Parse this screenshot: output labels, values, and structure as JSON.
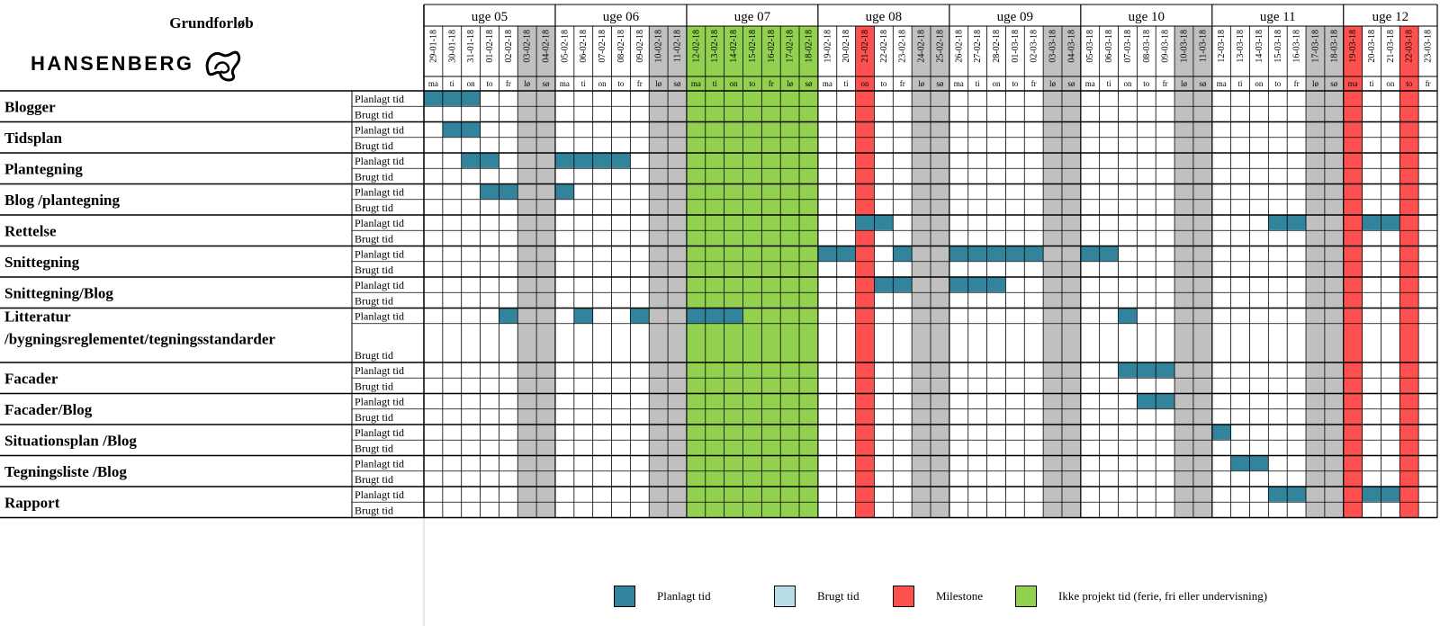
{
  "header": {
    "title": "Grundforløb",
    "brand": "HANSENBERG"
  },
  "colors": {
    "planned": "#31849b",
    "used": "#b7dde8",
    "milestone": "#ff5050",
    "nonproject": "#92d050",
    "weekend": "#c0c0c0",
    "grid": "#000000"
  },
  "weeks": [
    {
      "label": "uge 05",
      "start": 0,
      "span": 7
    },
    {
      "label": "uge 06",
      "start": 7,
      "span": 7
    },
    {
      "label": "uge 07",
      "start": 14,
      "span": 7
    },
    {
      "label": "uge 08",
      "start": 21,
      "span": 7
    },
    {
      "label": "uge 09",
      "start": 28,
      "span": 7
    },
    {
      "label": "uge 10",
      "start": 35,
      "span": 7
    },
    {
      "label": "uge 11",
      "start": 42,
      "span": 7
    },
    {
      "label": "uge 12",
      "start": 49,
      "span": 5
    }
  ],
  "days": [
    {
      "date": "29-01-18",
      "dow": "ma",
      "type": "work"
    },
    {
      "date": "30-01-18",
      "dow": "ti",
      "type": "work"
    },
    {
      "date": "31-01-18",
      "dow": "on",
      "type": "work"
    },
    {
      "date": "01-02-18",
      "dow": "to",
      "type": "work"
    },
    {
      "date": "02-02-18",
      "dow": "fr",
      "type": "work"
    },
    {
      "date": "03-02-18",
      "dow": "lø",
      "type": "weekend"
    },
    {
      "date": "04-02-18",
      "dow": "sø",
      "type": "weekend"
    },
    {
      "date": "05-02-18",
      "dow": "ma",
      "type": "work"
    },
    {
      "date": "06-02-18",
      "dow": "ti",
      "type": "work"
    },
    {
      "date": "07-02-18",
      "dow": "on",
      "type": "work"
    },
    {
      "date": "08-02-18",
      "dow": "to",
      "type": "work"
    },
    {
      "date": "09-02-18",
      "dow": "fr",
      "type": "work"
    },
    {
      "date": "10-02-18",
      "dow": "lø",
      "type": "weekend"
    },
    {
      "date": "11-02-18",
      "dow": "sø",
      "type": "weekend"
    },
    {
      "date": "12-02-18",
      "dow": "ma",
      "type": "nonproject"
    },
    {
      "date": "13-02-18",
      "dow": "ti",
      "type": "nonproject"
    },
    {
      "date": "14-02-18",
      "dow": "on",
      "type": "nonproject"
    },
    {
      "date": "15-02-18",
      "dow": "to",
      "type": "nonproject"
    },
    {
      "date": "16-02-18",
      "dow": "fr",
      "type": "nonproject"
    },
    {
      "date": "17-02-18",
      "dow": "lø",
      "type": "nonproject"
    },
    {
      "date": "18-02-18",
      "dow": "sø",
      "type": "nonproject"
    },
    {
      "date": "19-02-18",
      "dow": "ma",
      "type": "work"
    },
    {
      "date": "20-02-18",
      "dow": "ti",
      "type": "work"
    },
    {
      "date": "21-02-18",
      "dow": "on",
      "type": "milestone"
    },
    {
      "date": "22-02-18",
      "dow": "to",
      "type": "work"
    },
    {
      "date": "23-02-18",
      "dow": "fr",
      "type": "work"
    },
    {
      "date": "24-02-18",
      "dow": "lø",
      "type": "weekend"
    },
    {
      "date": "25-02-18",
      "dow": "sø",
      "type": "weekend"
    },
    {
      "date": "26-02-18",
      "dow": "ma",
      "type": "work"
    },
    {
      "date": "27-02-18",
      "dow": "ti",
      "type": "work"
    },
    {
      "date": "28-02-18",
      "dow": "on",
      "type": "work"
    },
    {
      "date": "01-03-18",
      "dow": "to",
      "type": "work"
    },
    {
      "date": "02-03-18",
      "dow": "fr",
      "type": "work"
    },
    {
      "date": "03-03-18",
      "dow": "lø",
      "type": "weekend"
    },
    {
      "date": "04-03-18",
      "dow": "sø",
      "type": "weekend"
    },
    {
      "date": "05-03-18",
      "dow": "ma",
      "type": "work"
    },
    {
      "date": "06-03-18",
      "dow": "ti",
      "type": "work"
    },
    {
      "date": "07-03-18",
      "dow": "on",
      "type": "work"
    },
    {
      "date": "08-03-18",
      "dow": "to",
      "type": "work"
    },
    {
      "date": "09-03-18",
      "dow": "fr",
      "type": "work"
    },
    {
      "date": "10-03-18",
      "dow": "lø",
      "type": "weekend"
    },
    {
      "date": "11-03-18",
      "dow": "sø",
      "type": "weekend"
    },
    {
      "date": "12-03-18",
      "dow": "ma",
      "type": "work"
    },
    {
      "date": "13-03-18",
      "dow": "ti",
      "type": "work"
    },
    {
      "date": "14-03-18",
      "dow": "on",
      "type": "work"
    },
    {
      "date": "15-03-18",
      "dow": "to",
      "type": "work"
    },
    {
      "date": "16-03-18",
      "dow": "fr",
      "type": "work"
    },
    {
      "date": "17-03-18",
      "dow": "lø",
      "type": "weekend"
    },
    {
      "date": "18-03-18",
      "dow": "sø",
      "type": "weekend"
    },
    {
      "date": "19-03-18",
      "dow": "ma",
      "type": "milestone"
    },
    {
      "date": "20-03-18",
      "dow": "ti",
      "type": "work"
    },
    {
      "date": "21-03-18",
      "dow": "on",
      "type": "work"
    },
    {
      "date": "22-03-18",
      "dow": "to",
      "type": "milestone"
    },
    {
      "date": "23-03-18",
      "dow": "fr",
      "type": "work"
    }
  ],
  "row_labels": {
    "planned": "Planlagt tid",
    "used": "Brugt tid"
  },
  "tasks": [
    {
      "name": [
        "Blogger"
      ],
      "planned_days": [
        0,
        1,
        2
      ],
      "used_days": []
    },
    {
      "name": [
        "Tidsplan"
      ],
      "planned_days": [
        1,
        2
      ],
      "used_days": []
    },
    {
      "name": [
        "Plantegning"
      ],
      "planned_days": [
        2,
        3,
        7,
        8,
        9,
        10
      ],
      "used_days": []
    },
    {
      "name": [
        "Blog /plantegning"
      ],
      "planned_days": [
        3,
        4,
        7
      ],
      "used_days": []
    },
    {
      "name": [
        "Rettelse"
      ],
      "planned_days": [
        23,
        24,
        45,
        46,
        50,
        51
      ],
      "used_days": []
    },
    {
      "name": [
        "Snittegning"
      ],
      "planned_days": [
        21,
        22,
        25,
        28,
        29,
        30,
        31,
        32,
        35,
        36
      ],
      "used_days": []
    },
    {
      "name": [
        "Snittegning/Blog"
      ],
      "planned_days": [
        24,
        25,
        28,
        29,
        30
      ],
      "used_days": []
    },
    {
      "name": [
        "Litteratur",
        "/bygningsreglementet/tegningsstandarder"
      ],
      "planned_days": [
        4,
        8,
        11,
        14,
        15,
        16,
        37
      ],
      "used_days": []
    },
    {
      "name": [
        "Facader"
      ],
      "planned_days": [
        37,
        38,
        39
      ],
      "used_days": []
    },
    {
      "name": [
        "Facader/Blog"
      ],
      "planned_days": [
        38,
        39
      ],
      "used_days": []
    },
    {
      "name": [
        "Situationsplan /Blog"
      ],
      "planned_days": [
        42
      ],
      "used_days": []
    },
    {
      "name": [
        "Tegningsliste /Blog"
      ],
      "planned_days": [
        43,
        44
      ],
      "used_days": []
    },
    {
      "name": [
        "Rapport"
      ],
      "planned_days": [
        45,
        46,
        50,
        51
      ],
      "used_days": []
    }
  ],
  "legend": [
    {
      "label": "Planlagt tid",
      "color": "#31849b"
    },
    {
      "label": "Brugt tid",
      "color": "#b7dde8"
    },
    {
      "label": "Milestone",
      "color": "#ff5050"
    },
    {
      "label": "Ikke projekt tid (ferie, fri eller undervisning)",
      "color": "#92d050"
    }
  ]
}
